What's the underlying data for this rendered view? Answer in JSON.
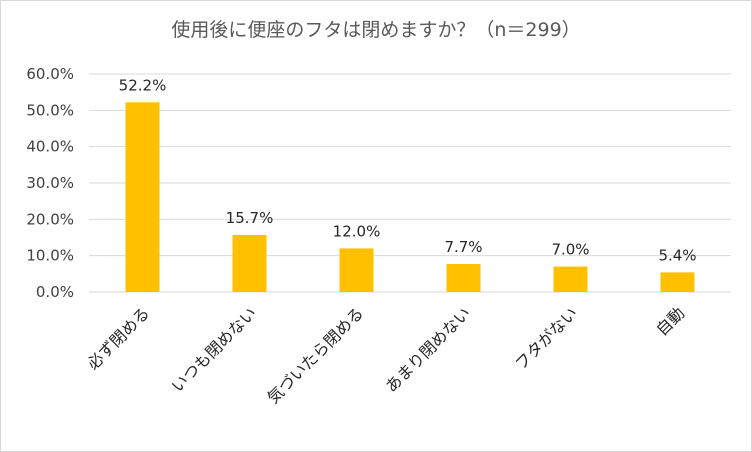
{
  "chart_data": {
    "type": "bar",
    "title": "使用後に便座のフタは閉めますか？（n＝299）",
    "categories": [
      "必ず閉める",
      "いつも閉めない",
      "気づいたら閉める",
      "あまり閉めない",
      "フタがない",
      "自動"
    ],
    "values": [
      52.2,
      15.7,
      12.0,
      7.7,
      7.0,
      5.4
    ],
    "data_labels": [
      "52.2%",
      "15.7%",
      "12.0%",
      "7.7%",
      "7.0%",
      "5.4%"
    ],
    "yticks": [
      "0.0%",
      "10.0%",
      "20.0%",
      "30.0%",
      "40.0%",
      "50.0%",
      "60.0%"
    ],
    "ylim": [
      0,
      60
    ],
    "xlabel": "",
    "ylabel": "",
    "grid": true,
    "bar_color": "#FFC000",
    "grid_color": "#d9d9d9"
  }
}
